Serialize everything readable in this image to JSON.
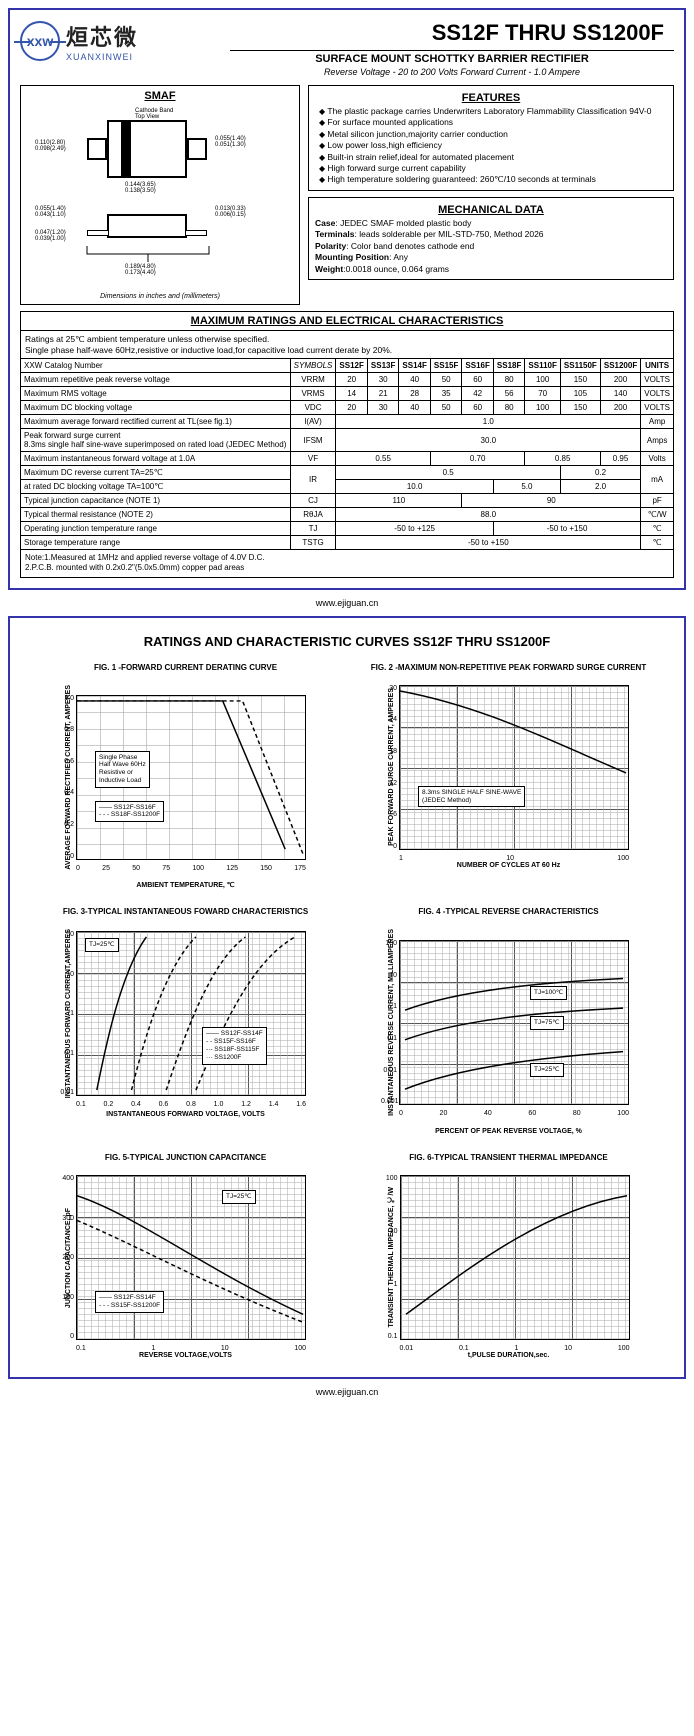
{
  "logo": {
    "abbrev": "xxw",
    "cn": "烜芯微",
    "en": "XUANXINWEI"
  },
  "main_title": "SS12F THRU SS1200F",
  "subtitle": "SURFACE MOUNT SCHOTTKY BARRIER RECTIFIER",
  "sub2": "Reverse Voltage - 20 to 200 Volts    Forward Current - 1.0 Ampere",
  "smaf_title": "SMAF",
  "dim_note": "Dimensions in inches and (millimeters)",
  "pkg_dims": {
    "top_label": "Cathode Band\nTop View",
    "h1": "0.110(2.80)\n0.098(2.49)",
    "w1": "0.144(3.65)\n0.138(3.50)",
    "lead_h": "0.055(1.40)\n0.051(1.30)",
    "standoff": "0.055(1.40)\n0.043(1.10)",
    "thick": "0.047(1.20)\n0.039(1.00)",
    "lead_t": "0.013(0.33)\n0.006(0.15)",
    "overall": "0.189(4.80)\n0.173(4.40)"
  },
  "features_title": "FEATURES",
  "features": [
    "The plastic package carries Underwriters Laboratory Flammability Classification 94V-0",
    "For surface mounted applications",
    "Metal silicon junction,majority carrier conduction",
    "Low power loss,high efficiency",
    "Built-in strain relief,ideal for automated placement",
    "High forward surge current capability",
    "High temperature soldering guaranteed: 260℃/10 seconds at terminals"
  ],
  "mech_title": "MECHANICAL DATA",
  "mech": {
    "case": "JEDEC SMAF molded plastic body",
    "terminals": "leads solderable per MIL-STD-750, Method 2026",
    "polarity": "Color band denotes cathode end",
    "mounting": "Any",
    "weight": "0.0018 ounce, 0.064 grams"
  },
  "max_title": "MAXIMUM RATINGS AND ELECTRICAL CHARACTERISTICS",
  "ratings_intro": "Ratings at 25℃ ambient temperature unless otherwise specified.\nSingle phase half-wave 60Hz,resistive or inductive load,for capacitive load current derate by 20%.",
  "parts": [
    "SS12F",
    "SS13F",
    "SS14F",
    "SS15F",
    "SS16F",
    "SS18F",
    "SS110F",
    "SS1150F",
    "SS1200F"
  ],
  "rows": {
    "catalog": "XXW Catalog Number",
    "vrrm": {
      "lbl": "Maximum repetitive peak reverse voltage",
      "sym": "VRRM",
      "vals": [
        "20",
        "30",
        "40",
        "50",
        "60",
        "80",
        "100",
        "150",
        "200"
      ],
      "unit": "VOLTS"
    },
    "vrms": {
      "lbl": "Maximum RMS voltage",
      "sym": "VRMS",
      "vals": [
        "14",
        "21",
        "28",
        "35",
        "42",
        "56",
        "70",
        "105",
        "140"
      ],
      "unit": "VOLTS"
    },
    "vdc": {
      "lbl": "Maximum DC blocking voltage",
      "sym": "VDC",
      "vals": [
        "20",
        "30",
        "40",
        "50",
        "60",
        "80",
        "100",
        "150",
        "200"
      ],
      "unit": "VOLTS"
    },
    "iav": {
      "lbl": "Maximum average forward rectified current at TL(see fig.1)",
      "sym": "I(AV)",
      "val": "1.0",
      "unit": "Amp"
    },
    "ifsm": {
      "lbl": "Peak forward surge current\n8.3ms single half sine-wave superimposed on rated load (JEDEC Method)",
      "sym": "IFSM",
      "val": "30.0",
      "unit": "Amps"
    },
    "vf": {
      "lbl": "Maximum instantaneous forward voltage at 1.0A",
      "sym": "VF",
      "groups": [
        [
          "0.55",
          3
        ],
        [
          "0.70",
          3
        ],
        [
          "0.85",
          2
        ],
        [
          "0.95",
          1
        ]
      ],
      "unit": "Volts"
    },
    "ir25": {
      "lbl": "Maximum DC reverse current      TA=25℃",
      "sym": "IR",
      "groups": [
        [
          "0.5",
          7
        ],
        [
          "0.2",
          2
        ]
      ],
      "unit": "mA"
    },
    "ir100": {
      "lbl": "at rated DC blocking voltage       TA=100℃",
      "groups": [
        [
          "10.0",
          5
        ],
        [
          "5.0",
          2
        ],
        [
          "2.0",
          2
        ]
      ]
    },
    "cj": {
      "lbl": "Typical junction capacitance (NOTE 1)",
      "sym": "CJ",
      "groups": [
        [
          "110",
          4
        ],
        [
          "90",
          5
        ]
      ],
      "unit": "pF"
    },
    "rth": {
      "lbl": "Typical thermal resistance (NOTE 2)",
      "sym": "RθJA",
      "val": "88.0",
      "unit": "℃/W"
    },
    "tj": {
      "lbl": "Operating junction temperature range",
      "sym": "TJ",
      "groups": [
        [
          "-50 to +125",
          5
        ],
        [
          "-50 to +150",
          4
        ]
      ],
      "unit": "℃"
    },
    "tstg": {
      "lbl": "Storage temperature range",
      "sym": "TSTG",
      "val": "-50 to +150",
      "unit": "℃"
    }
  },
  "notes": "Note:1.Measured at 1MHz and applied reverse voltage of 4.0V D.C.\n        2.P.C.B. mounted with 0.2x0.2\"(5.0x5.0mm) copper pad areas",
  "footer": "www.ejiguan.cn",
  "page2_title": "RATINGS AND CHARACTERISTIC CURVES SS12F THRU SS1200F",
  "charts": [
    {
      "title": "FIG. 1 -FORWARD CURRENT DERATING CURVE",
      "ylabel": "AVERAGE FORWARD RECTIFIED CURRENT, AMPERES",
      "xlabel": "AMBIENT TEMPERATURE, ℃",
      "xticks": [
        "0",
        "25",
        "50",
        "75",
        "100",
        "125",
        "150",
        "175"
      ],
      "yticks": [
        "1.0",
        "0.8",
        "0.6",
        "0.4",
        "0.2",
        "0"
      ],
      "legend": {
        "pos": "top:55px;left:18px",
        "lines": [
          "Single Phase",
          "Half Wave 60Hz",
          "Resistive or",
          "Inductive Load"
        ]
      },
      "legend2": {
        "pos": "top:105px;left:18px",
        "lines": [
          "—— SS12F-SS16F",
          "- - - SS18F-SS1200F"
        ]
      },
      "paths": [
        "M0,5 L147,5 L210,155",
        "M0,5 L167,5 L228,160"
      ],
      "dash": [
        false,
        true
      ]
    },
    {
      "title": "FIG. 2 -MAXIMUM NON-REPETITIVE PEAK FORWARD SURGE CURRENT",
      "ylabel": "PEAK FORWARD SURGE CURRENT, AMPERES",
      "xlabel": "NUMBER OF CYCLES AT 60 Hz",
      "xticks": [
        "1",
        "10",
        "100"
      ],
      "yticks": [
        "30",
        "24",
        "18",
        "12",
        "6",
        "0"
      ],
      "legend": {
        "pos": "top:100px;left:18px",
        "lines": [
          "8.3ms SINGLE HALF SINE-WAVE",
          "(JEDEC Method)"
        ]
      },
      "paths": [
        "M0,5 C80,20 140,50 228,88"
      ],
      "dash": [
        false
      ],
      "log": true
    },
    {
      "title": "FIG. 3-TYPICAL INSTANTANEOUS FOWARD CHARACTERISTICS",
      "ylabel": "INSTANTANEOUS FORWARD CURRENT,AMPERES",
      "xlabel": "INSTANTANEOUS FORWARD VOLTAGE, VOLTS",
      "xticks": [
        "0.1",
        "0.2",
        "0.4",
        "0.6",
        "0.8",
        "1.0",
        "1.2",
        "1.4",
        "1.6"
      ],
      "yticks": [
        "50",
        "10",
        "1",
        "0.1",
        "0.01"
      ],
      "legend": {
        "pos": "top:6px;left:8px",
        "lines": [
          "TJ=25℃"
        ]
      },
      "legend2": {
        "pos": "top:95px;left:125px",
        "lines": [
          "—— SS12F-SS14F",
          "- - SS15F-SS16F",
          "-·- SS18F-SS115F",
          "··· SS1200F"
        ]
      },
      "paths": [
        "M20,160 C30,110 45,40 70,5",
        "M55,160 C70,100 90,35 120,5",
        "M90,160 C110,100 135,30 170,5",
        "M120,160 C145,100 175,30 220,5"
      ],
      "dash": [
        false,
        true,
        true,
        true
      ],
      "log": true
    },
    {
      "title": "FIG. 4 -TYPICAL REVERSE CHARACTERISTICS",
      "ylabel": "INSTANTANEOUS REVERSE CURRENT, MILLIAMPERES",
      "xlabel": "PERCENT OF PEAK REVERSE VOLTAGE, %",
      "xticks": [
        "0",
        "20",
        "40",
        "60",
        "80",
        "100"
      ],
      "yticks": [
        "100",
        "10",
        "1",
        "0.1",
        "0.01",
        "0.001"
      ],
      "legend": {
        "pos": "top:45px;left:130px",
        "lines": [
          "TJ=100℃"
        ]
      },
      "legend2": {
        "pos": "top:75px;left:130px",
        "lines": [
          "TJ=75℃"
        ]
      },
      "legend3": {
        "pos": "top:122px;left:130px",
        "lines": [
          "TJ=25℃"
        ]
      },
      "paths": [
        "M5,70 C60,50 140,42 225,38",
        "M5,100 C60,80 140,72 225,68",
        "M5,150 C60,128 140,118 225,112"
      ],
      "dash": [
        false,
        false,
        false
      ],
      "log": true
    },
    {
      "title": "FIG. 5-TYPICAL JUNCTION CAPACITANCE",
      "ylabel": "JUNCTION CAPACITANCE, pF",
      "xlabel": "REVERSE VOLTAGE,VOLTS",
      "xticks": [
        "0.1",
        "1",
        "10",
        "100"
      ],
      "yticks": [
        "400",
        "300",
        "200",
        "100",
        "0"
      ],
      "legend": {
        "pos": "top:14px;left:145px",
        "lines": [
          "TJ=25℃"
        ]
      },
      "legend2": {
        "pos": "top:115px;left:18px",
        "lines": [
          "—— SS12F-SS14F",
          "- - - SS15F-SS1200F"
        ]
      },
      "paths": [
        "M0,20 C60,40 130,95 228,140",
        "M0,45 C60,70 130,110 228,148"
      ],
      "dash": [
        false,
        true
      ],
      "log": true
    },
    {
      "title": "FIG. 6-TYPICAL TRANSIENT THERMAL IMPEDANCE",
      "ylabel": "TRANSIENT THERMAL IMPEDANCE, ℃/W",
      "xlabel": "t,PULSE DURATION,sec.",
      "xticks": [
        "0.01",
        "0.1",
        "1",
        "10",
        "100"
      ],
      "yticks": [
        "100",
        "10",
        "1",
        "0.1"
      ],
      "paths": [
        "M5,140 C60,100 140,35 228,20"
      ],
      "dash": [
        false
      ],
      "log": true
    }
  ]
}
